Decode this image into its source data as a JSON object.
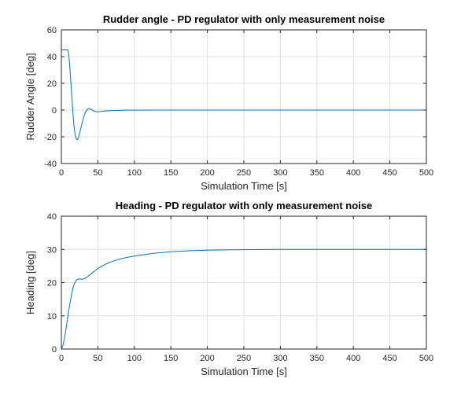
{
  "chart_data": [
    {
      "type": "line",
      "title": "Rudder angle - PD regulator with only measurement noise",
      "xlabel": "Simulation Time [s]",
      "ylabel": "Rudder Angle [deg]",
      "xlim": [
        0,
        500
      ],
      "ylim": [
        -40,
        60
      ],
      "xticks": [
        0,
        50,
        100,
        150,
        200,
        250,
        300,
        350,
        400,
        450,
        500
      ],
      "yticks": [
        -40,
        -20,
        0,
        20,
        40,
        60
      ],
      "grid": true,
      "line_color": "#0072bd",
      "series": [
        {
          "x": [
            0,
            3,
            6,
            9,
            10,
            11,
            12,
            13,
            14,
            15,
            16,
            17,
            18,
            19,
            20,
            21,
            22,
            23,
            24,
            25,
            27,
            29,
            31,
            33,
            35,
            37,
            39,
            41,
            43,
            46,
            49,
            52,
            55,
            58,
            62,
            66,
            70,
            75,
            80,
            90,
            100,
            120,
            150,
            200,
            250,
            300,
            350,
            400,
            450,
            500
          ],
          "y": [
            45,
            45,
            45,
            45,
            42,
            36,
            29,
            21,
            13,
            5,
            -3,
            -10,
            -15,
            -19,
            -21,
            -22,
            -22,
            -21,
            -19.5,
            -17.5,
            -13,
            -8.5,
            -4.5,
            -1.5,
            0.2,
            1,
            1,
            0.4,
            -0.3,
            -1,
            -1.3,
            -1.2,
            -1,
            -0.8,
            -0.6,
            -0.5,
            -0.4,
            -0.3,
            -0.2,
            -0.1,
            -0.05,
            0,
            0,
            0,
            0,
            0,
            0,
            0,
            0,
            0
          ]
        }
      ]
    },
    {
      "type": "line",
      "title": "Heading - PD regulator with only measurement noise",
      "xlabel": "Simulation Time [s]",
      "ylabel": "Heading [deg]",
      "xlim": [
        0,
        500
      ],
      "ylim": [
        0,
        40
      ],
      "xticks": [
        0,
        50,
        100,
        150,
        200,
        250,
        300,
        350,
        400,
        450,
        500
      ],
      "yticks": [
        0,
        10,
        20,
        30,
        40
      ],
      "grid": true,
      "line_color": "#0072bd",
      "series": [
        {
          "x": [
            0,
            2,
            4,
            6,
            8,
            10,
            12,
            14,
            16,
            18,
            20,
            22,
            25,
            28,
            32,
            36,
            40,
            45,
            50,
            55,
            60,
            70,
            80,
            90,
            100,
            115,
            130,
            150,
            175,
            200,
            225,
            250,
            300,
            350,
            400,
            450,
            500
          ],
          "y": [
            0,
            1,
            3,
            5.5,
            8.5,
            11.5,
            14,
            16.5,
            18.5,
            19.8,
            20.6,
            21,
            21.1,
            21,
            21.2,
            21.8,
            22.5,
            23.4,
            24.2,
            24.9,
            25.5,
            26.4,
            27.1,
            27.6,
            28,
            28.5,
            28.9,
            29.3,
            29.6,
            29.75,
            29.85,
            29.9,
            30,
            30,
            30,
            30,
            30
          ]
        }
      ]
    }
  ]
}
